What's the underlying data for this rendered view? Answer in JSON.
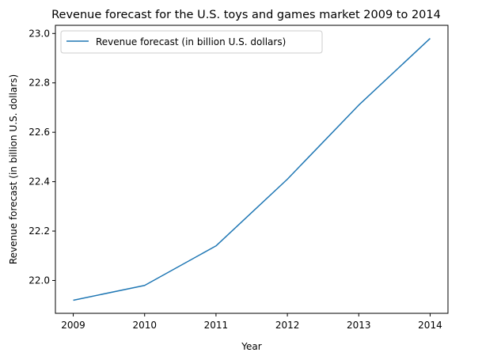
{
  "chart_data": {
    "type": "line",
    "title": "Revenue forecast for the U.S. toys and games market 2009 to 2014",
    "xlabel": "Year",
    "ylabel": "Revenue forecast (in billion U.S. dollars)",
    "x": [
      2009,
      2010,
      2011,
      2012,
      2013,
      2014
    ],
    "series": [
      {
        "name": "Revenue forecast (in billion U.S. dollars)",
        "values": [
          21.92,
          21.98,
          22.14,
          22.41,
          22.71,
          22.98
        ],
        "color": "#1f77b4"
      }
    ],
    "xticks": [
      "2009",
      "2010",
      "2011",
      "2012",
      "2013",
      "2014"
    ],
    "yticks": [
      "22.0",
      "22.2",
      "22.4",
      "22.6",
      "22.8",
      "23.0"
    ],
    "ylim": [
      21.867,
      23.033
    ],
    "xlim": [
      2008.75,
      2014.25
    ],
    "grid": false,
    "legend_position": "top-left"
  }
}
